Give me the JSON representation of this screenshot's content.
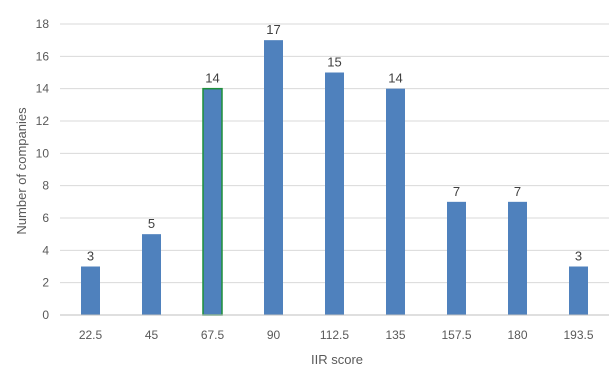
{
  "chart_data": {
    "type": "bar",
    "categories": [
      "22.5",
      "45",
      "67.5",
      "90",
      "112.5",
      "135",
      "157.5",
      "180",
      "193.5"
    ],
    "values": [
      3,
      5,
      14,
      17,
      15,
      14,
      7,
      7,
      3
    ],
    "data_labels": [
      "3",
      "5",
      "14",
      "17",
      "15",
      "14",
      "7",
      "7",
      "3"
    ],
    "y_ticks": [
      "0",
      "2",
      "4",
      "6",
      "8",
      "10",
      "12",
      "14",
      "16",
      "18"
    ],
    "xlabel": "IIR score",
    "ylabel": "Number of companies",
    "ylim": [
      0,
      18
    ],
    "grid": true,
    "legend": "none",
    "colors": {
      "bar": "#4f81bd",
      "highlight_edge": "#1f8f3a",
      "grid": "#d9d9d9",
      "axis": "#bfbfbf",
      "text": "#595959"
    }
  }
}
